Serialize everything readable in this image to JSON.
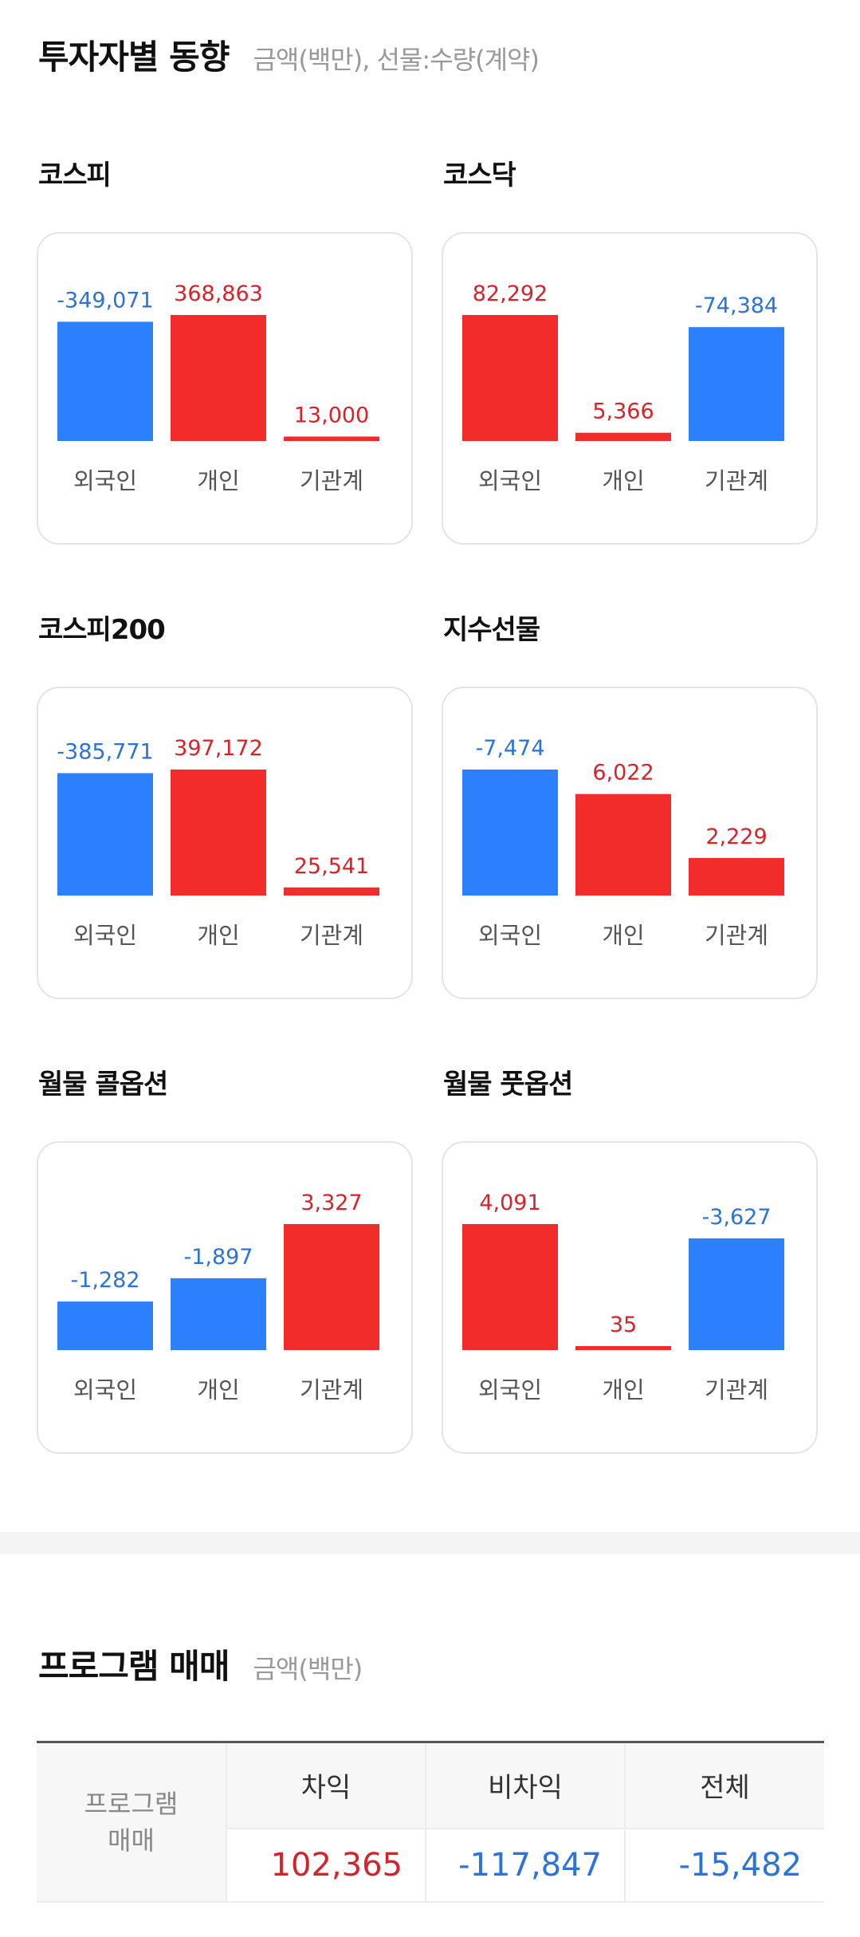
{
  "header": {
    "title": "투자자별 동향",
    "subtitle": "금액(백만), 선물:수량(계약)"
  },
  "colors": {
    "positive": "#f22b2b",
    "negative": "#2d80fc",
    "positive_text": "#d6232a",
    "negative_text": "#2b72d9"
  },
  "chart_data": [
    {
      "type": "bar",
      "title": "코스피",
      "categories": [
        "외국인",
        "개인",
        "기관계"
      ],
      "values": [
        -349071,
        368863,
        13000
      ],
      "value_labels": [
        "-349,071",
        "368,863",
        "13,000"
      ]
    },
    {
      "type": "bar",
      "title": "코스닥",
      "categories": [
        "외국인",
        "개인",
        "기관계"
      ],
      "values": [
        82292,
        5366,
        -74384
      ],
      "value_labels": [
        "82,292",
        "5,366",
        "-74,384"
      ]
    },
    {
      "type": "bar",
      "title": "코스피200",
      "categories": [
        "외국인",
        "개인",
        "기관계"
      ],
      "values": [
        -385771,
        397172,
        25541
      ],
      "value_labels": [
        "-385,771",
        "397,172",
        "25,541"
      ]
    },
    {
      "type": "bar",
      "title": "지수선물",
      "categories": [
        "외국인",
        "개인",
        "기관계"
      ],
      "values": [
        -7474,
        6022,
        2229
      ],
      "value_labels": [
        "-7,474",
        "6,022",
        "2,229"
      ]
    },
    {
      "type": "bar",
      "title": "월물 콜옵션",
      "categories": [
        "외국인",
        "개인",
        "기관계"
      ],
      "values": [
        -1282,
        -1897,
        3327
      ],
      "value_labels": [
        "-1,282",
        "-1,897",
        "3,327"
      ]
    },
    {
      "type": "bar",
      "title": "월물 풋옵션",
      "categories": [
        "외국인",
        "개인",
        "기관계"
      ],
      "values": [
        4091,
        35,
        -3627
      ],
      "value_labels": [
        "4,091",
        "35",
        "-3,627"
      ]
    }
  ],
  "program": {
    "title": "프로그램 매매",
    "subtitle": "금액(백만)",
    "row_label_line1": "프로그램",
    "row_label_line2": "매매",
    "columns": [
      "차익",
      "비차익",
      "전체"
    ],
    "values": [
      "102,365",
      "-117,847",
      "-15,482"
    ]
  }
}
